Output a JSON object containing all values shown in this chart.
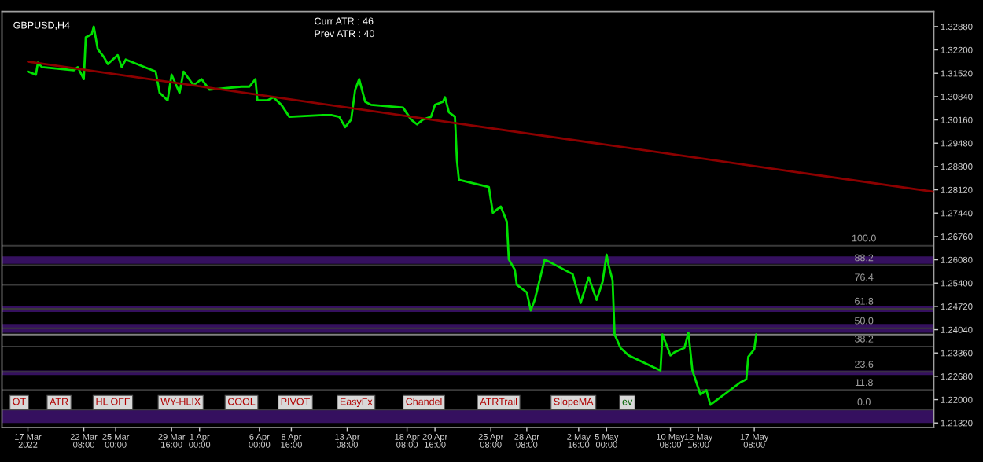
{
  "chart_data": {
    "type": "line",
    "xlim": [
      "2022-03-15T12:00",
      "2022-06-01T08:00"
    ],
    "ylim": [
      1.2119,
      1.3332
    ],
    "xticks": [
      {
        "value": "2022-03-17T16:00",
        "label": "17 Mar 2022"
      },
      {
        "value": "2022-03-22T08:00",
        "label": "22 Mar 08:00"
      },
      {
        "value": "2022-03-25T00:00",
        "label": "25 Mar 00:00"
      },
      {
        "value": "2022-03-29T16:00",
        "label": "29 Mar 16:00"
      },
      {
        "value": "2022-04-01T00:00",
        "label": "1 Apr 00:00"
      },
      {
        "value": "2022-04-06T00:00",
        "label": "6 Apr 00:00"
      },
      {
        "value": "2022-04-08T16:00",
        "label": "8 Apr 16:00"
      },
      {
        "value": "2022-04-13T08:00",
        "label": "13 Apr 08:00"
      },
      {
        "value": "2022-04-18T08:00",
        "label": "18 Apr 08:00"
      },
      {
        "value": "2022-04-20T16:00",
        "label": "20 Apr 16:00"
      },
      {
        "value": "2022-04-25T08:00",
        "label": "25 Apr 08:00"
      },
      {
        "value": "2022-04-28T08:00",
        "label": "28 Apr 08:00"
      },
      {
        "value": "2022-05-02T16:00",
        "label": "2 May 16:00"
      },
      {
        "value": "2022-05-05T00:00",
        "label": "5 May 00:00"
      },
      {
        "value": "2022-05-10T08:00",
        "label": "10 May 08:00"
      },
      {
        "value": "2022-05-12T16:00",
        "label": "12 May 16:00"
      },
      {
        "value": "2022-05-17T08:00",
        "label": "17 May 08:00"
      }
    ],
    "yticks": [
      {
        "value": 1.2132,
        "label": "1.21320"
      },
      {
        "value": 1.22,
        "label": "1.22000"
      },
      {
        "value": 1.2268,
        "label": "1.22680"
      },
      {
        "value": 1.2336,
        "label": "1.23360"
      },
      {
        "value": 1.2404,
        "label": "1.24040"
      },
      {
        "value": 1.2472,
        "label": "1.24720"
      },
      {
        "value": 1.254,
        "label": "1.25400"
      },
      {
        "value": 1.2608,
        "label": "1.26080"
      },
      {
        "value": 1.2676,
        "label": "1.26760"
      },
      {
        "value": 1.2744,
        "label": "1.27440"
      },
      {
        "value": 1.2812,
        "label": "1.28120"
      },
      {
        "value": 1.288,
        "label": "1.28800"
      },
      {
        "value": 1.2948,
        "label": "1.29480"
      },
      {
        "value": 1.3016,
        "label": "1.30160"
      },
      {
        "value": 1.3084,
        "label": "1.30840"
      },
      {
        "value": 1.3152,
        "label": "1.31520"
      },
      {
        "value": 1.322,
        "label": "1.32200"
      },
      {
        "value": 1.3288,
        "label": "1.32880"
      }
    ],
    "grid": false,
    "series": [
      {
        "color": "#00e000",
        "x": [
          "2022-03-17T16:00",
          "2022-03-18T08:00",
          "2022-03-18T12:00",
          "2022-03-18T20:00",
          "2022-03-21T12:00",
          "2022-03-21T20:00",
          "2022-03-22T08:00",
          "2022-03-22T12:00",
          "2022-03-23T00:00",
          "2022-03-23T04:00",
          "2022-03-23T12:00",
          "2022-03-24T00:00",
          "2022-03-24T08:00",
          "2022-03-25T04:00",
          "2022-03-25T12:00",
          "2022-03-25T20:00",
          "2022-03-28T08:00",
          "2022-03-28T16:00",
          "2022-03-29T08:00",
          "2022-03-29T16:00",
          "2022-03-30T08:00",
          "2022-03-30T16:00",
          "2022-03-31T12:00",
          "2022-04-01T04:00",
          "2022-04-01T20:00",
          "2022-04-04T12:00",
          "2022-04-05T04:00",
          "2022-04-05T16:00",
          "2022-04-05T20:00",
          "2022-04-06T16:00",
          "2022-04-07T04:00",
          "2022-04-07T20:00",
          "2022-04-08T12:00",
          "2022-04-11T08:00",
          "2022-04-12T00:00",
          "2022-04-12T16:00",
          "2022-04-13T04:00",
          "2022-04-13T16:00",
          "2022-04-14T00:00",
          "2022-04-14T08:00",
          "2022-04-14T20:00",
          "2022-04-15T08:00",
          "2022-04-18T00:00",
          "2022-04-18T16:00",
          "2022-04-19T04:00",
          "2022-04-19T16:00",
          "2022-04-20T08:00",
          "2022-04-20T16:00",
          "2022-04-21T08:00",
          "2022-04-21T12:00",
          "2022-04-21T20:00",
          "2022-04-22T08:00",
          "2022-04-22T12:00",
          "2022-04-22T16:00",
          "2022-04-25T04:00",
          "2022-04-25T12:00",
          "2022-04-26T04:00",
          "2022-04-26T16:00",
          "2022-04-26T20:00",
          "2022-04-27T08:00",
          "2022-04-27T12:00",
          "2022-04-28T08:00",
          "2022-04-28T16:00",
          "2022-04-29T00:00",
          "2022-04-29T20:00",
          "2022-05-02T04:00",
          "2022-05-02T20:00",
          "2022-05-03T12:00",
          "2022-05-04T04:00",
          "2022-05-04T16:00",
          "2022-05-05T00:00",
          "2022-05-05T04:00",
          "2022-05-05T12:00",
          "2022-05-05T16:00",
          "2022-05-06T04:00",
          "2022-05-06T20:00",
          "2022-05-09T12:00",
          "2022-05-09T16:00",
          "2022-05-10T08:00",
          "2022-05-10T16:00",
          "2022-05-11T12:00",
          "2022-05-11T20:00",
          "2022-05-12T04:00",
          "2022-05-12T20:00",
          "2022-05-13T08:00",
          "2022-05-13T16:00",
          "2022-05-16T04:00",
          "2022-05-16T16:00",
          "2022-05-16T20:00",
          "2022-05-17T08:00",
          "2022-05-17T12:00"
        ],
        "values": [
          1.3157,
          1.3148,
          1.3183,
          1.317,
          1.3161,
          1.317,
          1.3135,
          1.3257,
          1.3266,
          1.3288,
          1.3222,
          1.32,
          1.3179,
          1.3205,
          1.317,
          1.3192,
          1.3157,
          1.3095,
          1.3073,
          1.3148,
          1.3095,
          1.3157,
          1.3117,
          1.3135,
          1.3104,
          1.3113,
          1.3113,
          1.3135,
          1.3073,
          1.3073,
          1.3082,
          1.306,
          1.3025,
          1.303,
          1.303,
          1.3025,
          1.2995,
          1.3017,
          1.3104,
          1.3135,
          1.3069,
          1.306,
          1.3052,
          1.3017,
          1.3003,
          1.3017,
          1.3025,
          1.306,
          1.3069,
          1.3082,
          1.3038,
          1.3025,
          1.2898,
          1.2841,
          1.282,
          1.2745,
          1.2763,
          1.2719,
          1.2609,
          1.2579,
          1.2535,
          1.2513,
          1.246,
          1.2491,
          1.2609,
          1.2566,
          1.2482,
          1.2557,
          1.2491,
          1.2544,
          1.2623,
          1.2592,
          1.2548,
          1.239,
          1.2351,
          1.2329,
          1.2285,
          1.239,
          1.2329,
          1.2338,
          1.2351,
          1.2395,
          1.2285,
          1.2215,
          1.2228,
          1.2185,
          1.225,
          1.2259,
          1.2325,
          1.2347,
          1.239
        ]
      },
      {
        "color": "#8c0000",
        "x": [
          "2022-03-17T16:00",
          "2022-06-01T08:00"
        ],
        "values": [
          1.3186,
          1.2806
        ]
      }
    ],
    "ref_lines": [
      {
        "axis": "y",
        "value": 1.2649,
        "color": "#3a3a3a"
      },
      {
        "axis": "y",
        "value": 1.2592,
        "color": "#3a3a3a"
      },
      {
        "axis": "y",
        "value": 1.2535,
        "color": "#3a3a3a"
      },
      {
        "axis": "y",
        "value": 1.2465,
        "color": "#3a3a3a"
      },
      {
        "axis": "y",
        "value": 1.2408,
        "color": "#3a3a3a"
      },
      {
        "axis": "y",
        "value": 1.2355,
        "color": "#3a3a3a"
      },
      {
        "axis": "y",
        "value": 1.2281,
        "color": "#3a3a3a"
      },
      {
        "axis": "y",
        "value": 1.2228,
        "color": "#3a3a3a"
      },
      {
        "axis": "y",
        "value": 1.2171,
        "color": "#3a3a3a"
      },
      {
        "axis": "y",
        "value": 1.239,
        "color": "#808080"
      }
    ],
    "bands": [
      {
        "axis": "y",
        "from": 1.2596,
        "to": 1.2618,
        "color": "#35105f"
      },
      {
        "axis": "y",
        "from": 1.2456,
        "to": 1.2474,
        "color": "#35105f"
      },
      {
        "axis": "y",
        "from": 1.2395,
        "to": 1.2421,
        "color": "#35105f"
      },
      {
        "axis": "y",
        "from": 1.2272,
        "to": 1.2285,
        "color": "#35105f"
      },
      {
        "axis": "y",
        "from": 1.2132,
        "to": 1.2171,
        "color": "#35105f"
      }
    ],
    "annotations": [
      "GBPUSD,H4",
      "Curr ATR : 46",
      "Prev ATR : 40",
      "OT",
      "ATR",
      "HL OFF",
      "WY-HLIX",
      "COOL",
      "PIVOT",
      "EasyFx",
      "Chandel",
      "ATRTrail",
      "SlopeMA",
      "ev",
      {
        "text": "100.0",
        "x": "2022-05-26T12:00",
        "y": 1.2649
      },
      {
        "text": "88.2",
        "x": "2022-05-26T12:00",
        "y": 1.2592
      },
      {
        "text": "76.4",
        "x": "2022-05-26T12:00",
        "y": 1.2535
      },
      {
        "text": "61.8",
        "x": "2022-05-26T12:00",
        "y": 1.2465
      },
      {
        "text": "50.0",
        "x": "2022-05-26T12:00",
        "y": 1.2408
      },
      {
        "text": "38.2",
        "x": "2022-05-26T12:00",
        "y": 1.2355
      },
      {
        "text": "23.6",
        "x": "2022-05-26T12:00",
        "y": 1.2281
      },
      {
        "text": "11.8",
        "x": "2022-05-26T12:00",
        "y": 1.2228
      },
      {
        "text": "0.0",
        "x": "2022-05-26T12:00",
        "y": 1.2171
      }
    ]
  }
}
